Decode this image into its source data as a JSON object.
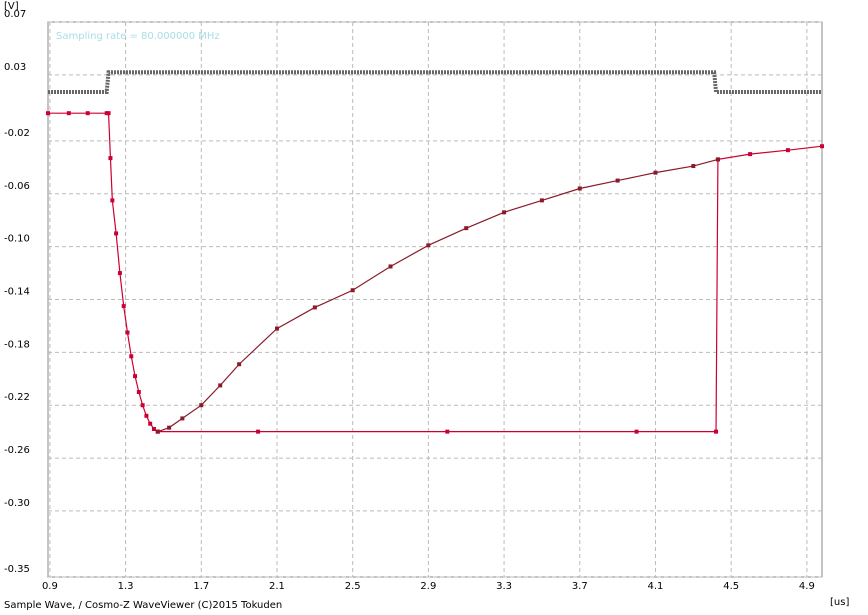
{
  "chart_data": {
    "type": "line",
    "title": "Sampling rate = 80.000000 MHz",
    "ylabel": "[V]",
    "xlabel": "[us]",
    "footer": "Sample Wave, / Cosmo-Z WaveViewer (C)2015 Tokuden",
    "xlim": [
      0.89,
      4.98
    ],
    "ylim": [
      0.07,
      -0.35
    ],
    "xticks": [
      0.9,
      1.3,
      1.7,
      2.1,
      2.5,
      2.9,
      3.3,
      3.7,
      4.1,
      4.5,
      4.9
    ],
    "yticks": [
      0.07,
      0.03,
      -0.02,
      -0.06,
      {
        "value": -0.1,
        "label": "-0.10"
      },
      -0.14,
      -0.18,
      -0.22,
      -0.26,
      {
        "value": -0.3,
        "label": "-0.30"
      },
      -0.35
    ],
    "grid": true,
    "series": [
      {
        "color": "#666666",
        "x": [
          0.89,
          1.2,
          1.21,
          4.41,
          4.42,
          4.98
        ],
        "values": [
          0.017,
          0.017,
          0.032,
          0.032,
          0.017,
          0.017
        ]
      },
      {
        "color": "#cc0033",
        "x": [
          0.89,
          1.0,
          1.1,
          1.2,
          1.21,
          1.22,
          1.23,
          1.25,
          1.27,
          1.29,
          1.31,
          1.33,
          1.35,
          1.37,
          1.39,
          1.41,
          1.43,
          1.45,
          1.47,
          2.0,
          3.0,
          4.0,
          4.42,
          4.43,
          4.6,
          4.8,
          4.98
        ],
        "values": [
          0.001,
          0.001,
          0.001,
          0.001,
          0.001,
          -0.033,
          -0.065,
          -0.09,
          -0.12,
          -0.145,
          -0.165,
          -0.183,
          -0.198,
          -0.21,
          -0.22,
          -0.228,
          -0.234,
          -0.238,
          -0.24,
          -0.24,
          -0.24,
          -0.24,
          -0.24,
          -0.034,
          -0.03,
          -0.027,
          -0.024
        ]
      },
      {
        "color": "#8b1a2a",
        "x": [
          1.47,
          1.53,
          1.6,
          1.7,
          1.8,
          1.9,
          2.1,
          2.3,
          2.5,
          2.7,
          2.9,
          3.1,
          3.3,
          3.5,
          3.7,
          3.9,
          4.1,
          4.3,
          4.43
        ],
        "values": [
          -0.24,
          -0.237,
          -0.23,
          -0.22,
          -0.205,
          -0.189,
          -0.162,
          -0.146,
          -0.133,
          -0.115,
          -0.099,
          -0.086,
          -0.074,
          -0.065,
          -0.056,
          -0.05,
          -0.044,
          -0.039,
          -0.034
        ]
      }
    ]
  }
}
